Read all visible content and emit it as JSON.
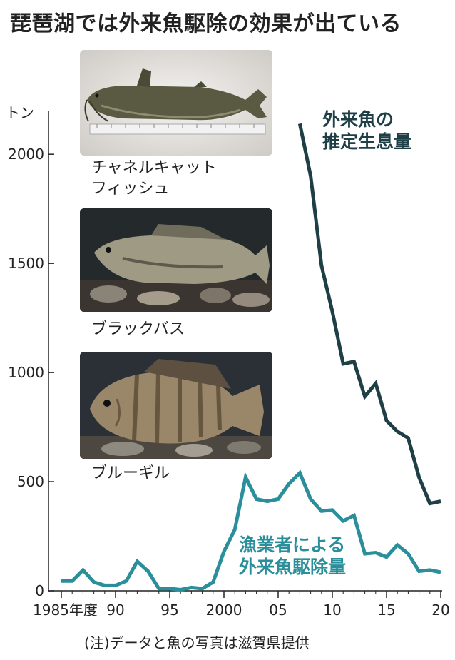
{
  "title": "琵琶湖では外来魚駆除の効果が出ている",
  "note": "(注)データと魚の写真は滋賀県提供",
  "photos": [
    {
      "caption": "チャネルキャット\nフィッシュ"
    },
    {
      "caption": "ブラックバス"
    },
    {
      "caption": "ブルーギル"
    }
  ],
  "colors": {
    "estimated": "#1f3f47",
    "removed": "#2a8f9a"
  },
  "chart_data": {
    "type": "line",
    "ylabel": "トン",
    "ylim": [
      0,
      2200
    ],
    "yticks": [
      0,
      500,
      1000,
      1500,
      2000
    ],
    "xlim": [
      1985,
      2020
    ],
    "xticks": [
      {
        "x": 1985,
        "label": "1985年度"
      },
      {
        "x": 1990,
        "label": "90"
      },
      {
        "x": 1995,
        "label": "95"
      },
      {
        "x": 2000,
        "label": "2000"
      },
      {
        "x": 2005,
        "label": "05"
      },
      {
        "x": 2010,
        "label": "10"
      },
      {
        "x": 2015,
        "label": "15"
      },
      {
        "x": 2020,
        "label": "20"
      }
    ],
    "series": [
      {
        "name": "外来魚の\n推定生息量",
        "color": "#1f3f47",
        "x": [
          2007,
          2008,
          2009,
          2010,
          2011,
          2012,
          2013,
          2014,
          2015,
          2016,
          2017,
          2018,
          2019,
          2020
        ],
        "values": [
          2140,
          1900,
          1490,
          1280,
          1040,
          1050,
          890,
          950,
          780,
          730,
          700,
          520,
          400,
          410
        ]
      },
      {
        "name": "漁業者による\n外来魚駆除量",
        "color": "#2a8f9a",
        "x": [
          1985,
          1986,
          1987,
          1988,
          1989,
          1990,
          1991,
          1992,
          1993,
          1994,
          1995,
          1996,
          1997,
          1998,
          1999,
          2000,
          2001,
          2002,
          2003,
          2004,
          2005,
          2006,
          2007,
          2008,
          2009,
          2010,
          2011,
          2012,
          2013,
          2014,
          2015,
          2016,
          2017,
          2018,
          2019,
          2020
        ],
        "values": [
          45,
          45,
          95,
          40,
          25,
          25,
          45,
          135,
          90,
          10,
          10,
          5,
          15,
          10,
          40,
          180,
          280,
          520,
          420,
          410,
          420,
          490,
          540,
          420,
          365,
          370,
          320,
          345,
          170,
          175,
          155,
          210,
          170,
          90,
          95,
          85
        ]
      }
    ]
  }
}
